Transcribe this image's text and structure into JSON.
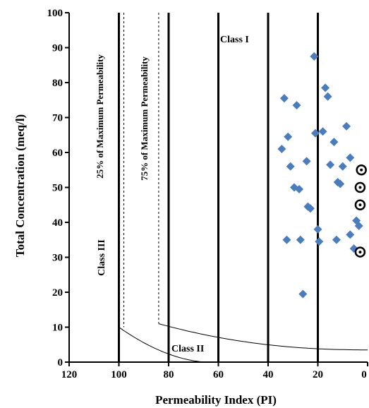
{
  "chart_data": {
    "type": "scatter",
    "title": "",
    "xlabel": "Permeability Index (PI)",
    "ylabel": "Total Concentration (meq/l)",
    "xlim": [
      120,
      0
    ],
    "ylim": [
      0,
      100
    ],
    "x_reversed": true,
    "x_ticks": [
      120,
      100,
      80,
      60,
      40,
      20,
      0
    ],
    "y_ticks": [
      0,
      10,
      20,
      30,
      40,
      50,
      60,
      70,
      80,
      90,
      100
    ],
    "grid": false,
    "class_boundaries_x": [
      100,
      80,
      60,
      40,
      20
    ],
    "region_labels": {
      "class_i": "Class I",
      "class_ii": "Class II",
      "class_iii": "Class III",
      "pct25": "25% of Maximum Permeability",
      "pct75": "75% of Maximum Permeability"
    },
    "series": [
      {
        "marker": "diamond",
        "color": "#4a7cc0",
        "points": [
          {
            "x": 21.5,
            "y": 87.5
          },
          {
            "x": 17,
            "y": 78.5
          },
          {
            "x": 16,
            "y": 76
          },
          {
            "x": 33.5,
            "y": 75.5
          },
          {
            "x": 28.5,
            "y": 73.5
          },
          {
            "x": 8.5,
            "y": 67.5
          },
          {
            "x": 18,
            "y": 66
          },
          {
            "x": 21,
            "y": 65.5
          },
          {
            "x": 32,
            "y": 64.5
          },
          {
            "x": 13.5,
            "y": 63
          },
          {
            "x": 34.5,
            "y": 61
          },
          {
            "x": 7,
            "y": 58.5
          },
          {
            "x": 24.5,
            "y": 57.5
          },
          {
            "x": 15,
            "y": 56.5
          },
          {
            "x": 31,
            "y": 56
          },
          {
            "x": 10,
            "y": 56
          },
          {
            "x": 12,
            "y": 51.5
          },
          {
            "x": 11,
            "y": 51
          },
          {
            "x": 29.5,
            "y": 50
          },
          {
            "x": 27.5,
            "y": 49.5
          },
          {
            "x": 24,
            "y": 44.5
          },
          {
            "x": 23,
            "y": 44
          },
          {
            "x": 4.5,
            "y": 40.5
          },
          {
            "x": 3.5,
            "y": 39
          },
          {
            "x": 20,
            "y": 38
          },
          {
            "x": 7,
            "y": 36.5
          },
          {
            "x": 32.5,
            "y": 35
          },
          {
            "x": 27,
            "y": 35
          },
          {
            "x": 12.5,
            "y": 35
          },
          {
            "x": 19.5,
            "y": 34.5
          },
          {
            "x": 5.5,
            "y": 32.5
          },
          {
            "x": 26,
            "y": 19.5
          }
        ]
      },
      {
        "marker": "circle-dot",
        "color": "#000000",
        "points": [
          {
            "x": 2.5,
            "y": 55
          },
          {
            "x": 3,
            "y": 50
          },
          {
            "x": 3,
            "y": 45
          },
          {
            "x": 3,
            "y": 31.5
          }
        ]
      }
    ]
  }
}
